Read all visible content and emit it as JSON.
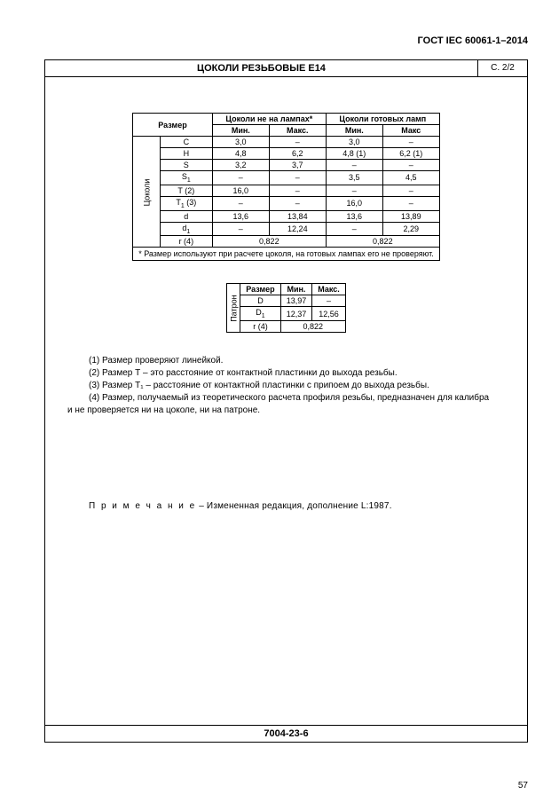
{
  "header": {
    "doc_id": "ГОСТ IEC 60061-1–2014",
    "page_number": "57"
  },
  "frame": {
    "title": "ЦОКОЛИ РЕЗЬБОВЫЕ Е14",
    "sheet": "С. 2/2",
    "footer_code": "7004-23-6"
  },
  "table1": {
    "h_size": "Размер",
    "h_not_on_lamps": "Цоколи не на лампах*",
    "h_on_lamps": "Цоколи готовых ламп",
    "h_min1": "Мин.",
    "h_max1": "Макс.",
    "h_min2": "Мин.",
    "h_max2": "Макс",
    "group": "Цоколи",
    "rows": [
      {
        "k": "C",
        "a": "3,0",
        "b": "–",
        "c": "3,0",
        "d": "–"
      },
      {
        "k": "H",
        "a": "4,8",
        "b": "6,2",
        "c": "4,8 (1)",
        "d": "6,2 (1)"
      },
      {
        "k": "S",
        "a": "3,2",
        "b": "3,7",
        "c": "–",
        "d": "–"
      },
      {
        "k": "S₁",
        "a": "–",
        "b": "–",
        "c": "3,5",
        "d": "4,5"
      },
      {
        "k": "T (2)",
        "a": "16,0",
        "b": "–",
        "c": "–",
        "d": "–"
      },
      {
        "k": "T₁ (3)",
        "a": "–",
        "b": "–",
        "c": "16,0",
        "d": "–"
      },
      {
        "k": "d",
        "a": "13,6",
        "b": "13,84",
        "c": "13,6",
        "d": "13,89"
      },
      {
        "k": "d₁",
        "a": "–",
        "b": "12,24",
        "c": "–",
        "d": "2,29"
      }
    ],
    "r_row": {
      "k": "r (4)",
      "ab": "0,822",
      "cd": "0,822"
    },
    "footnote_star": "* Размер используют при расчете цоколя, на готовых лампах его не проверяют."
  },
  "table2": {
    "group": "Патрон",
    "h_size": "Размер",
    "h_min": "Мин.",
    "h_max": "Макс.",
    "rows": [
      {
        "k": "D",
        "a": "13,97",
        "b": "–"
      },
      {
        "k": "D₁",
        "a": "12,37",
        "b": "12,56"
      }
    ],
    "r_row": {
      "k": "r (4)",
      "ab": "0,822"
    }
  },
  "notes": {
    "n1": "(1) Размер проверяют линейкой.",
    "n2": "(2) Размер Т – это расстояние от контактной пластинки до выхода резьбы.",
    "n3": "(3) Размер Т₁ – расстояние от контактной пластинки с припоем до выхода резьбы.",
    "n4a": "(4) Размер, получаемый из теоретического расчета профиля резьбы, предназначен для калибра",
    "n4b": "и не проверяется ни на цоколе, ни на патроне.",
    "remark_label": "П р и м е ч а н и е",
    "remark_text": " – Измененная редакция, дополнение L:1987."
  }
}
